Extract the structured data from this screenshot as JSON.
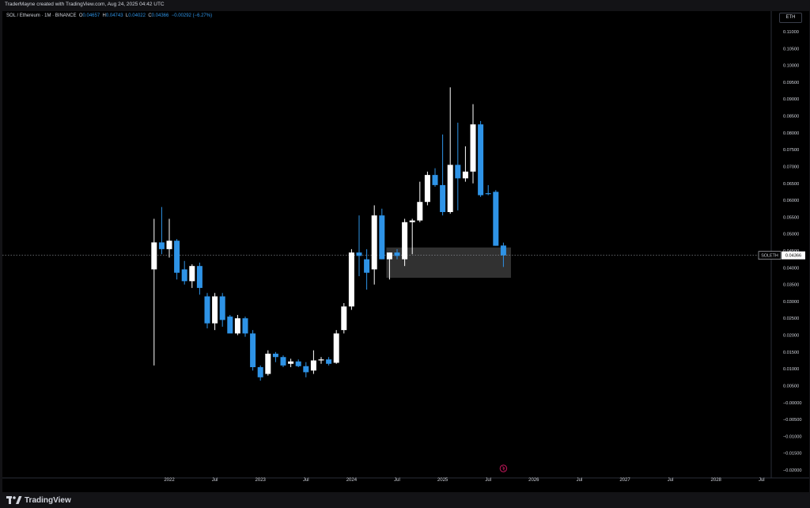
{
  "header": {
    "credit": "TraderMayne created with TradingView.com, Aug 24, 2025 04:42 UTC"
  },
  "legend": {
    "symbol": "SOL / Ethereum · 1M · BINANCE",
    "o_label": "O",
    "o_value": "0.04657",
    "h_label": "H",
    "h_value": "0.04743",
    "l_label": "L",
    "l_value": "0.04022",
    "c_label": "C",
    "c_value": "0.04366",
    "change": "−0.00292 (−6.27%)"
  },
  "currency_button": "ETH",
  "footer": {
    "brand": "TradingView"
  },
  "colors": {
    "up": "#ffffff",
    "down": "#2e93e6",
    "background": "#000000",
    "zone": "#3a3a3a",
    "text": "#d1d4dc"
  },
  "chart_data": {
    "type": "candlestick",
    "symbol": "SOLETH",
    "interval": "1M",
    "yaxis": {
      "min": -0.02,
      "max": 0.11,
      "step": 0.005,
      "ticks": [
        "0.11000",
        "0.10500",
        "0.10000",
        "0.09500",
        "0.09000",
        "0.08500",
        "0.08000",
        "0.07500",
        "0.07000",
        "0.06500",
        "0.06000",
        "0.05500",
        "0.05000",
        "0.04500",
        "0.04000",
        "0.03500",
        "0.03000",
        "0.02500",
        "0.02000",
        "0.01500",
        "0.01000",
        "0.00500",
        "−0.00000",
        "−0.00500",
        "−0.01000",
        "−0.01500",
        "−0.02000"
      ]
    },
    "xaxis": {
      "labels": [
        "2022",
        "Jul",
        "2023",
        "Jul",
        "2024",
        "Jul",
        "2025",
        "Jul",
        "2026",
        "Jul",
        "2027",
        "Jul",
        "2028",
        "Jul"
      ],
      "label_months": [
        0,
        6,
        12,
        18,
        24,
        30,
        36,
        42,
        48,
        54,
        60,
        66,
        72,
        78
      ]
    },
    "last_price": {
      "label": "SOLETH",
      "value": "0.04366"
    },
    "price_line": 0.04366,
    "zone": {
      "start_month": 29,
      "end_month": 45,
      "top": 0.046,
      "bottom": 0.037
    },
    "candles": [
      {
        "m": -2,
        "o": 0.0395,
        "h": 0.0545,
        "l": 0.011,
        "c": 0.0475
      },
      {
        "m": -1,
        "o": 0.0475,
        "h": 0.058,
        "l": 0.044,
        "c": 0.0455
      },
      {
        "m": 0,
        "o": 0.0455,
        "h": 0.0545,
        "l": 0.043,
        "c": 0.048
      },
      {
        "m": 1,
        "o": 0.048,
        "h": 0.0485,
        "l": 0.0365,
        "c": 0.0385
      },
      {
        "m": 2,
        "o": 0.0395,
        "h": 0.042,
        "l": 0.035,
        "c": 0.036
      },
      {
        "m": 3,
        "o": 0.036,
        "h": 0.041,
        "l": 0.034,
        "c": 0.0405
      },
      {
        "m": 4,
        "o": 0.0405,
        "h": 0.0415,
        "l": 0.032,
        "c": 0.034
      },
      {
        "m": 5,
        "o": 0.0315,
        "h": 0.0325,
        "l": 0.022,
        "c": 0.0235
      },
      {
        "m": 6,
        "o": 0.0235,
        "h": 0.0325,
        "l": 0.0215,
        "c": 0.0315
      },
      {
        "m": 7,
        "o": 0.0315,
        "h": 0.0325,
        "l": 0.0225,
        "c": 0.0245
      },
      {
        "m": 8,
        "o": 0.0255,
        "h": 0.026,
        "l": 0.021,
        "c": 0.0205
      },
      {
        "m": 9,
        "o": 0.0205,
        "h": 0.026,
        "l": 0.02,
        "c": 0.025
      },
      {
        "m": 10,
        "o": 0.025,
        "h": 0.0255,
        "l": 0.0195,
        "c": 0.0205
      },
      {
        "m": 11,
        "o": 0.0205,
        "h": 0.0215,
        "l": 0.0095,
        "c": 0.0105
      },
      {
        "m": 12,
        "o": 0.0105,
        "h": 0.011,
        "l": 0.0065,
        "c": 0.0075
      },
      {
        "m": 13,
        "o": 0.0085,
        "h": 0.0155,
        "l": 0.008,
        "c": 0.0145
      },
      {
        "m": 14,
        "o": 0.0145,
        "h": 0.015,
        "l": 0.012,
        "c": 0.0135
      },
      {
        "m": 15,
        "o": 0.0135,
        "h": 0.014,
        "l": 0.0105,
        "c": 0.011
      },
      {
        "m": 16,
        "o": 0.0115,
        "h": 0.013,
        "l": 0.0105,
        "c": 0.0122
      },
      {
        "m": 17,
        "o": 0.0122,
        "h": 0.0128,
        "l": 0.0105,
        "c": 0.0108
      },
      {
        "m": 18,
        "o": 0.0108,
        "h": 0.012,
        "l": 0.0075,
        "c": 0.009
      },
      {
        "m": 19,
        "o": 0.0095,
        "h": 0.0155,
        "l": 0.0085,
        "c": 0.0125
      },
      {
        "m": 20,
        "o": 0.0125,
        "h": 0.0135,
        "l": 0.0115,
        "c": 0.0128
      },
      {
        "m": 21,
        "o": 0.0128,
        "h": 0.0135,
        "l": 0.011,
        "c": 0.0115
      },
      {
        "m": 22,
        "o": 0.0118,
        "h": 0.0215,
        "l": 0.0115,
        "c": 0.0205
      },
      {
        "m": 23,
        "o": 0.0215,
        "h": 0.0295,
        "l": 0.0205,
        "c": 0.0285
      },
      {
        "m": 24,
        "o": 0.0285,
        "h": 0.0455,
        "l": 0.0275,
        "c": 0.0445
      },
      {
        "m": 25,
        "o": 0.0445,
        "h": 0.0555,
        "l": 0.0375,
        "c": 0.0435
      },
      {
        "m": 26,
        "o": 0.0425,
        "h": 0.0455,
        "l": 0.0335,
        "c": 0.0385
      },
      {
        "m": 27,
        "o": 0.0395,
        "h": 0.0585,
        "l": 0.035,
        "c": 0.0555
      },
      {
        "m": 28,
        "o": 0.0555,
        "h": 0.0575,
        "l": 0.0425,
        "c": 0.0425
      },
      {
        "m": 29,
        "o": 0.0425,
        "h": 0.0445,
        "l": 0.0365,
        "c": 0.0445
      },
      {
        "m": 30,
        "o": 0.0445,
        "h": 0.0455,
        "l": 0.0425,
        "c": 0.0435
      },
      {
        "m": 31,
        "o": 0.0425,
        "h": 0.0545,
        "l": 0.0405,
        "c": 0.0535
      },
      {
        "m": 32,
        "o": 0.0535,
        "h": 0.0545,
        "l": 0.044,
        "c": 0.054
      },
      {
        "m": 33,
        "o": 0.054,
        "h": 0.0655,
        "l": 0.0535,
        "c": 0.0595
      },
      {
        "m": 34,
        "o": 0.0595,
        "h": 0.0685,
        "l": 0.0585,
        "c": 0.0675
      },
      {
        "m": 35,
        "o": 0.0675,
        "h": 0.0695,
        "l": 0.064,
        "c": 0.0645
      },
      {
        "m": 36,
        "o": 0.0645,
        "h": 0.0795,
        "l": 0.0555,
        "c": 0.0565
      },
      {
        "m": 37,
        "o": 0.0565,
        "h": 0.0935,
        "l": 0.056,
        "c": 0.0705
      },
      {
        "m": 38,
        "o": 0.0705,
        "h": 0.083,
        "l": 0.057,
        "c": 0.0665
      },
      {
        "m": 39,
        "o": 0.0665,
        "h": 0.076,
        "l": 0.0655,
        "c": 0.0685
      },
      {
        "m": 40,
        "o": 0.0685,
        "h": 0.0885,
        "l": 0.065,
        "c": 0.0825
      },
      {
        "m": 41,
        "o": 0.0825,
        "h": 0.0835,
        "l": 0.061,
        "c": 0.0615
      },
      {
        "m": 42,
        "o": 0.0621,
        "h": 0.0645,
        "l": 0.0615,
        "c": 0.0619
      },
      {
        "m": 43,
        "o": 0.0625,
        "h": 0.063,
        "l": 0.0465,
        "c": 0.0465
      },
      {
        "m": 44,
        "o": 0.04657,
        "h": 0.04743,
        "l": 0.04022,
        "c": 0.04366
      }
    ]
  }
}
